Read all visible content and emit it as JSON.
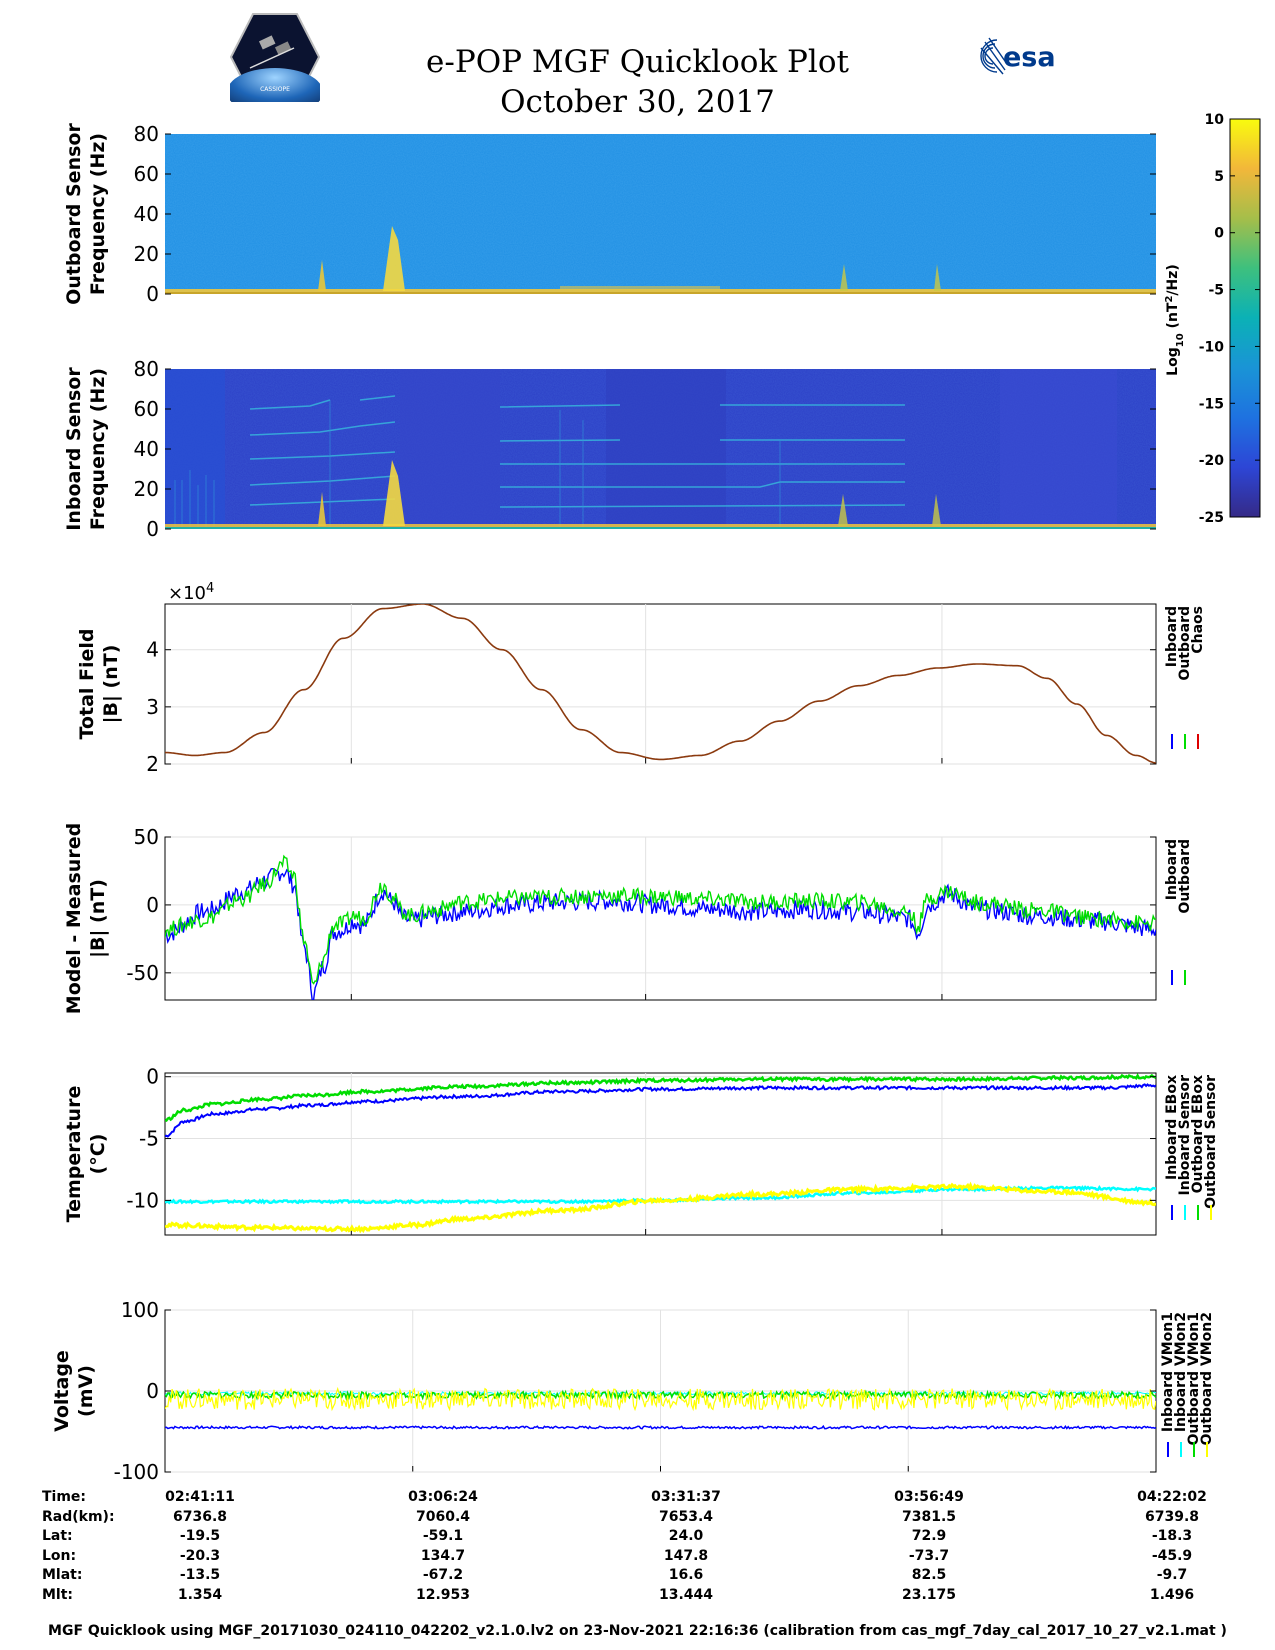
{
  "header": {
    "title_line1": "e-POP MGF Quicklook Plot",
    "title_line2": "October 30, 2017",
    "left_logo": "CASSIOPE",
    "right_logo": "esa"
  },
  "chart_data": [
    {
      "id": "outboard_spectrogram",
      "type": "heatmap",
      "ylabel": [
        "Outboard Sensor",
        "Frequency (Hz)"
      ],
      "ylim": [
        0,
        80
      ],
      "yticks": [
        "80",
        "60",
        "40",
        "20",
        "0"
      ],
      "colorbar": {
        "label": "Log10 (nT^2/Hz)",
        "label_parts": [
          "Log",
          "10",
          " (nT",
          "2",
          "/Hz)"
        ],
        "range": [
          -25,
          10
        ],
        "ticks": [
          "10",
          "5",
          "0",
          "-5",
          "-10",
          "-15",
          "-20",
          "-25"
        ]
      }
    },
    {
      "id": "inboard_spectrogram",
      "type": "heatmap",
      "ylabel": [
        "Inboard Sensor",
        "Frequency (Hz)"
      ],
      "ylim": [
        0,
        80
      ],
      "yticks": [
        "80",
        "60",
        "40",
        "20",
        "0"
      ]
    },
    {
      "id": "total_field",
      "type": "line",
      "ylabel": [
        "Total Field",
        "|B| (nT)"
      ],
      "ylim": [
        2,
        4.8
      ],
      "yticks": [
        "4",
        "3",
        "2"
      ],
      "exponent_label": "×10",
      "exponent": "4",
      "legend": [
        "Inboard",
        "Outboard",
        "Chaos"
      ],
      "legend_colors": [
        "#0000ff",
        "#00dd00",
        "#dd0000"
      ],
      "line_color": "#8b3a0f",
      "series": [
        {
          "name": "Chaos",
          "x": [
            0,
            0.03,
            0.06,
            0.1,
            0.14,
            0.18,
            0.22,
            0.26,
            0.3,
            0.34,
            0.38,
            0.42,
            0.46,
            0.5,
            0.54,
            0.58,
            0.62,
            0.66,
            0.7,
            0.74,
            0.78,
            0.82,
            0.86,
            0.89,
            0.92,
            0.95,
            0.98,
            1.0
          ],
          "values": [
            2.2,
            2.15,
            2.2,
            2.55,
            3.3,
            4.2,
            4.72,
            4.8,
            4.55,
            4.0,
            3.3,
            2.6,
            2.2,
            2.08,
            2.15,
            2.4,
            2.75,
            3.1,
            3.37,
            3.55,
            3.68,
            3.75,
            3.72,
            3.5,
            3.05,
            2.5,
            2.15,
            2.02
          ]
        }
      ]
    },
    {
      "id": "model_minus_measured",
      "type": "line",
      "ylabel": [
        "Model - Measured",
        "|B| (nT)"
      ],
      "ylim": [
        -70,
        50
      ],
      "yticks": [
        "50",
        "0",
        "-50"
      ],
      "legend": [
        "Inboard",
        "Outboard"
      ],
      "legend_colors": [
        "#0000ff",
        "#00dd00"
      ],
      "series": [
        {
          "name": "Inboard",
          "color": "#0000ff",
          "x": [
            0,
            0.04,
            0.08,
            0.1,
            0.12,
            0.13,
            0.14,
            0.15,
            0.16,
            0.17,
            0.18,
            0.19,
            0.2,
            0.22,
            0.23,
            0.24,
            0.25,
            0.27,
            0.3,
            0.35,
            0.4,
            0.45,
            0.5,
            0.55,
            0.6,
            0.65,
            0.7,
            0.75,
            0.76,
            0.77,
            0.79,
            0.82,
            0.88,
            0.94,
            1.0
          ],
          "values": [
            -22,
            -5,
            10,
            18,
            25,
            15,
            -30,
            -65,
            -45,
            -20,
            -18,
            -12,
            -15,
            10,
            2,
            -10,
            -12,
            -8,
            -5,
            0,
            2,
            3,
            0,
            -3,
            -5,
            -3,
            -5,
            -10,
            -20,
            0,
            8,
            -3,
            -8,
            -12,
            -18
          ]
        },
        {
          "name": "Outboard",
          "color": "#00dd00",
          "x": [
            0,
            0.04,
            0.08,
            0.1,
            0.12,
            0.13,
            0.14,
            0.15,
            0.16,
            0.17,
            0.18,
            0.19,
            0.2,
            0.22,
            0.23,
            0.24,
            0.25,
            0.27,
            0.3,
            0.35,
            0.4,
            0.45,
            0.5,
            0.55,
            0.6,
            0.65,
            0.7,
            0.75,
            0.76,
            0.77,
            0.79,
            0.82,
            0.88,
            0.94,
            1.0
          ],
          "values": [
            -18,
            -10,
            5,
            15,
            30,
            22,
            -25,
            -60,
            -40,
            -15,
            -14,
            -8,
            -10,
            15,
            5,
            -5,
            -8,
            -4,
            2,
            5,
            6,
            7,
            6,
            4,
            2,
            3,
            2,
            -5,
            -15,
            5,
            10,
            2,
            -4,
            -10,
            -14
          ]
        }
      ]
    },
    {
      "id": "temperature",
      "type": "line",
      "ylabel": [
        "Temperature",
        "(°C)"
      ],
      "ylim": [
        -12.8,
        0.3
      ],
      "yticks": [
        "0",
        "-5",
        "-10"
      ],
      "legend": [
        "Inboard EBox",
        "Inboard Sensor",
        "Outboard EBox",
        "Outboard Sensor"
      ],
      "legend_colors": [
        "#0000ff",
        "#00ffff",
        "#00dd00",
        "#ffff00"
      ],
      "series": [
        {
          "name": "Inboard EBox",
          "color": "#0000ff",
          "x": [
            0,
            0.02,
            0.05,
            0.1,
            0.15,
            0.2,
            0.3,
            0.4,
            0.5,
            0.6,
            0.7,
            0.8,
            0.9,
            0.95,
            1.0
          ],
          "values": [
            -4.8,
            -3.6,
            -3.0,
            -2.6,
            -2.3,
            -2.0,
            -1.6,
            -1.2,
            -1.0,
            -0.9,
            -0.9,
            -0.9,
            -0.9,
            -0.9,
            -0.7
          ]
        },
        {
          "name": "Inboard Sensor",
          "color": "#00ffff",
          "x": [
            0,
            0.2,
            0.4,
            0.5,
            0.6,
            0.7,
            0.8,
            0.9,
            1.0
          ],
          "values": [
            -10.1,
            -10.1,
            -10.1,
            -10.0,
            -9.8,
            -9.4,
            -9.1,
            -9.0,
            -9.1
          ]
        },
        {
          "name": "Outboard EBox",
          "color": "#00dd00",
          "x": [
            0,
            0.02,
            0.05,
            0.1,
            0.15,
            0.2,
            0.3,
            0.4,
            0.5,
            0.6,
            0.7,
            0.8,
            0.9,
            1.0
          ],
          "values": [
            -3.5,
            -2.7,
            -2.2,
            -1.8,
            -1.5,
            -1.2,
            -0.8,
            -0.5,
            -0.3,
            -0.2,
            -0.2,
            -0.2,
            -0.1,
            0.0
          ]
        },
        {
          "name": "Outboard Sensor",
          "color": "#ffff00",
          "x": [
            0,
            0.1,
            0.15,
            0.2,
            0.25,
            0.3,
            0.4,
            0.5,
            0.6,
            0.7,
            0.8,
            0.9,
            1.0
          ],
          "values": [
            -12.0,
            -12.2,
            -12.3,
            -12.3,
            -12.0,
            -11.5,
            -10.8,
            -10.0,
            -9.5,
            -9.1,
            -8.9,
            -9.3,
            -10.2
          ]
        }
      ]
    },
    {
      "id": "voltage",
      "type": "line",
      "ylabel": [
        "Voltage",
        "(mV)"
      ],
      "ylim": [
        -100,
        100
      ],
      "yticks": [
        "100",
        "0",
        "-100"
      ],
      "legend": [
        "Inboard VMon1",
        "Inboard VMon2",
        "Outboard VMon1",
        "Outboard VMon2"
      ],
      "legend_colors": [
        "#0000ff",
        "#00ffff",
        "#00dd00",
        "#ffff00"
      ],
      "series": [
        {
          "name": "Inboard VMon1",
          "color": "#0000ff",
          "x": [
            0,
            1
          ],
          "values": [
            -45,
            -45
          ]
        },
        {
          "name": "Inboard VMon2",
          "color": "#00ffff",
          "x": [
            0,
            1
          ],
          "values": [
            -3,
            -3
          ]
        },
        {
          "name": "Outboard VMon1",
          "color": "#00dd00",
          "x": [
            0,
            1
          ],
          "values": [
            -5,
            -5
          ]
        },
        {
          "name": "Outboard VMon2",
          "color": "#ffff00",
          "x": [
            0,
            1
          ],
          "values": [
            -10,
            -10
          ]
        }
      ]
    }
  ],
  "info_table": {
    "labels": [
      "Time:",
      "Rad(km):",
      "Lat:",
      "Lon:",
      "Mlat:",
      "Mlt:"
    ],
    "columns": [
      [
        "02:41:11",
        "6736.8",
        "-19.5",
        "-20.3",
        "-13.5",
        "1.354"
      ],
      [
        "03:06:24",
        "7060.4",
        "-59.1",
        "134.7",
        "-67.2",
        "12.953"
      ],
      [
        "03:31:37",
        "7653.4",
        "24.0",
        "147.8",
        "16.6",
        "13.444"
      ],
      [
        "03:56:49",
        "7381.5",
        "72.9",
        "-73.7",
        "82.5",
        "23.175"
      ],
      [
        "04:22:02",
        "6739.8",
        "-18.3",
        "-45.9",
        "-9.7",
        "1.496"
      ]
    ]
  },
  "footer": "MGF Quicklook using MGF_20171030_024110_042202_v2.1.0.lv2 on 23-Nov-2021 22:16:36 (calibration from cas_mgf_7day_cal_2017_10_27_v2.1.mat )"
}
